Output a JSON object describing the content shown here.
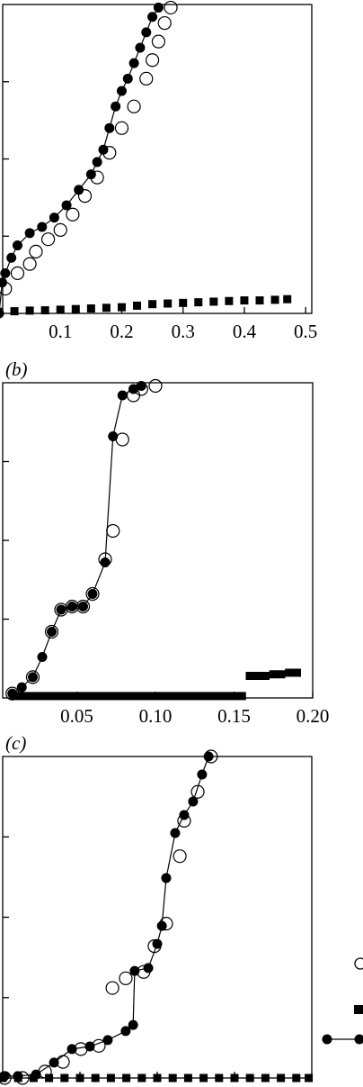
{
  "chart_data": [
    {
      "type": "scatter",
      "xlim": [
        0,
        0.51
      ],
      "ylim": [
        0,
        1
      ],
      "xticks": [
        0.1,
        0.2,
        0.3,
        0.4,
        0.5
      ],
      "yticks": [
        0.25,
        0.5,
        0.75
      ],
      "show_xtick_labels": true,
      "color": "#000000",
      "series": [
        {
          "marker": "open",
          "line": false,
          "x": [
            0.01,
            0.03,
            0.05,
            0.06,
            0.08,
            0.1,
            0.12,
            0.14,
            0.16,
            0.18,
            0.2,
            0.22,
            0.24,
            0.25,
            0.26,
            0.27,
            0.28
          ],
          "values": [
            0.08,
            0.13,
            0.16,
            0.2,
            0.24,
            0.27,
            0.32,
            0.38,
            0.44,
            0.52,
            0.6,
            0.67,
            0.76,
            0.82,
            0.88,
            0.94,
            0.99
          ]
        },
        {
          "marker": "square",
          "line": false,
          "x": [
            0,
            0.025,
            0.05,
            0.075,
            0.1,
            0.125,
            0.15,
            0.175,
            0.2,
            0.225,
            0.25,
            0.275,
            0.3,
            0.325,
            0.35,
            0.375,
            0.4,
            0.425,
            0.45,
            0.47
          ],
          "values": [
            0.005,
            0.007,
            0.009,
            0.01,
            0.012,
            0.014,
            0.016,
            0.018,
            0.02,
            0.025,
            0.03,
            0.032,
            0.034,
            0.036,
            0.038,
            0.04,
            0.042,
            0.042,
            0.044,
            0.046
          ]
        },
        {
          "marker": "filled",
          "line": true,
          "x": [
            0,
            0.005,
            0.01,
            0.02,
            0.03,
            0.05,
            0.07,
            0.09,
            0.11,
            0.13,
            0.15,
            0.16,
            0.17,
            0.18,
            0.19,
            0.2,
            0.21,
            0.22,
            0.23,
            0.24,
            0.25,
            0.26
          ],
          "values": [
            0,
            0.1,
            0.13,
            0.18,
            0.22,
            0.26,
            0.28,
            0.31,
            0.35,
            0.4,
            0.45,
            0.49,
            0.53,
            0.6,
            0.67,
            0.72,
            0.76,
            0.81,
            0.86,
            0.91,
            0.96,
            0.99
          ]
        }
      ]
    },
    {
      "type": "scatter",
      "title": "(b)",
      "xlim": [
        0,
        0.2
      ],
      "ylim": [
        0,
        1
      ],
      "xticks": [
        0.05,
        {
          "value": 0.1,
          "label": "0.10"
        },
        0.15,
        {
          "value": 0.2,
          "label": "0.20"
        }
      ],
      "yticks": [
        0.25,
        0.5,
        0.75
      ],
      "show_xtick_labels": true,
      "color": "#000000",
      "series": [
        {
          "marker": "open",
          "line": false,
          "x": [
            0.009,
            0.022,
            0.034,
            0.04,
            0.047,
            0.054,
            0.06,
            0.068,
            0.073,
            0.079,
            0.086,
            0.091,
            0.1
          ],
          "values": [
            0.014,
            0.066,
            0.21,
            0.28,
            0.29,
            0.29,
            0.33,
            0.44,
            0.53,
            0.82,
            0.96,
            0.98,
            0.99
          ]
        },
        {
          "marker": "square",
          "line": false,
          "x": [
            0.01,
            0.015,
            0.02,
            0.025,
            0.03,
            0.035,
            0.04,
            0.045,
            0.05,
            0.055,
            0.06,
            0.065,
            0.07,
            0.075,
            0.08,
            0.085,
            0.09,
            0.095,
            0.1,
            0.105,
            0.11,
            0.115,
            0.12,
            0.125,
            0.13,
            0.135,
            0.14,
            0.145,
            0.15,
            0.155,
            0.16,
            0.165,
            0.17,
            0.175,
            0.18,
            0.185,
            0.19
          ],
          "values": [
            0.006,
            0.006,
            0.006,
            0.006,
            0.006,
            0.006,
            0.006,
            0.006,
            0.006,
            0.006,
            0.006,
            0.006,
            0.006,
            0.006,
            0.006,
            0.006,
            0.006,
            0.006,
            0.006,
            0.006,
            0.006,
            0.006,
            0.006,
            0.006,
            0.006,
            0.006,
            0.006,
            0.006,
            0.006,
            0.006,
            0.07,
            0.07,
            0.07,
            0.075,
            0.075,
            0.08,
            0.08
          ]
        },
        {
          "marker": "filled",
          "line": true,
          "x": [
            0.009,
            0.015,
            0.022,
            0.028,
            0.034,
            0.04,
            0.047,
            0.054,
            0.06,
            0.068,
            0.073,
            0.079,
            0.086,
            0.091
          ],
          "values": [
            0.014,
            0.034,
            0.066,
            0.13,
            0.21,
            0.28,
            0.29,
            0.29,
            0.33,
            0.43,
            0.83,
            0.96,
            0.98,
            0.99
          ]
        }
      ]
    },
    {
      "type": "scatter",
      "title": "(c)",
      "xlim": [
        0,
        1
      ],
      "ylim": [
        0,
        1
      ],
      "xticks": [
        0.25,
        0.5,
        0.75
      ],
      "yticks": [
        0.25,
        0.5,
        0.75
      ],
      "show_xtick_labels": false,
      "color": "#000000",
      "series": [
        {
          "marker": "open",
          "line": false,
          "x": [
            0.006,
            0.064,
            0.137,
            0.195,
            0.253,
            0.311,
            0.355,
            0.398,
            0.456,
            0.491,
            0.529,
            0.573,
            0.587,
            0.631,
            0.674
          ],
          "values": [
            0,
            0,
            0.02,
            0.05,
            0.09,
            0.1,
            0.28,
            0.31,
            0.33,
            0.41,
            0.48,
            0.69,
            0.8,
            0.89,
            1.0
          ]
        },
        {
          "marker": "square",
          "line": false,
          "x": [
            0,
            0.05,
            0.1,
            0.15,
            0.2,
            0.25,
            0.3,
            0.35,
            0.4,
            0.45,
            0.5,
            0.55,
            0.6,
            0.65,
            0.7,
            0.75,
            0.8,
            0.85,
            0.9,
            0.95,
            0.99
          ],
          "values": [
            0,
            0,
            0,
            0,
            0,
            0,
            0,
            0,
            0,
            0,
            0,
            0,
            0,
            0,
            0,
            0,
            0,
            0,
            0,
            0,
            0
          ]
        },
        {
          "marker": "filled",
          "line": true,
          "x": [
            0.006,
            0.049,
            0.108,
            0.166,
            0.224,
            0.282,
            0.34,
            0.398,
            0.422,
            0.427,
            0.471,
            0.5,
            0.515,
            0.529,
            0.558,
            0.587,
            0.616,
            0.645,
            0.666
          ],
          "values": [
            0.006,
            0.006,
            0.011,
            0.048,
            0.09,
            0.098,
            0.118,
            0.146,
            0.165,
            0.333,
            0.342,
            0.417,
            0.473,
            0.622,
            0.762,
            0.818,
            0.86,
            0.944,
            1.0
          ]
        }
      ]
    }
  ]
}
